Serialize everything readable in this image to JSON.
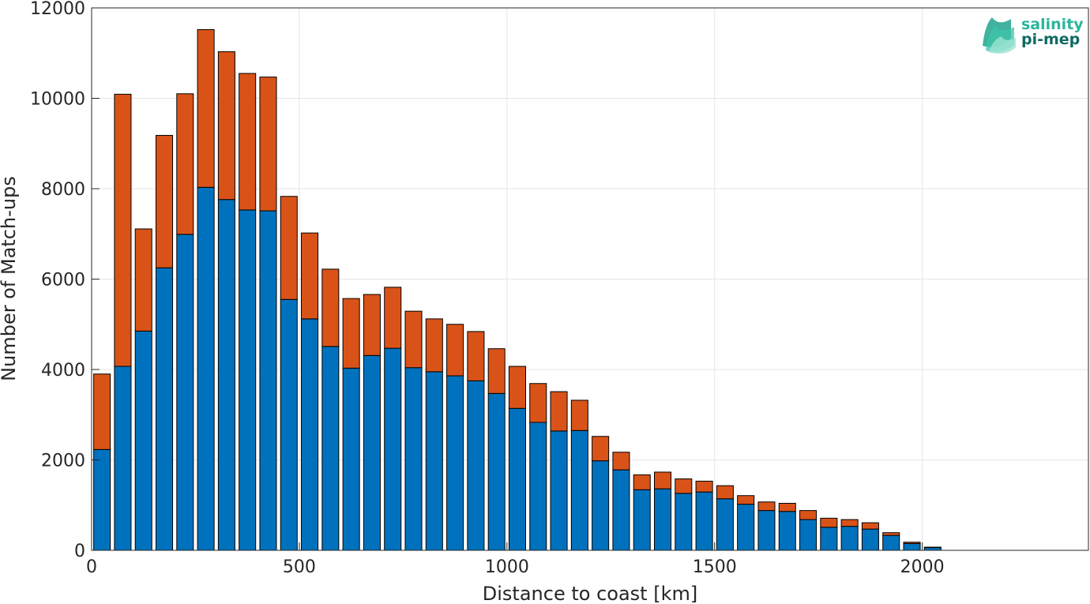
{
  "logo": {
    "line1": "salinity",
    "line2": "pi-mep",
    "color1": "#2bb59b",
    "color2": "#0f6b63"
  },
  "chart_data": {
    "type": "bar",
    "stacked": true,
    "xlabel": "Distance to coast [km]",
    "ylabel": "Number of Match-ups",
    "xlim": [
      0,
      2400
    ],
    "ylim": [
      0,
      12000
    ],
    "x_ticks": [
      0,
      500,
      1000,
      1500,
      2000
    ],
    "y_ticks": [
      0,
      2000,
      4000,
      6000,
      8000,
      10000,
      12000
    ],
    "bin_width": 50,
    "grid": true,
    "x": [
      25,
      75,
      125,
      175,
      225,
      275,
      325,
      375,
      425,
      475,
      525,
      575,
      625,
      675,
      725,
      775,
      825,
      875,
      925,
      975,
      1025,
      1075,
      1125,
      1175,
      1225,
      1275,
      1325,
      1375,
      1425,
      1475,
      1525,
      1575,
      1625,
      1675,
      1725,
      1775,
      1825,
      1875,
      1925,
      1975,
      2025
    ],
    "series": [
      {
        "color": "#0072bd",
        "values": [
          2230,
          4070,
          4850,
          6250,
          6990,
          8030,
          7760,
          7530,
          7510,
          5550,
          5120,
          4510,
          4030,
          4310,
          4470,
          4040,
          3950,
          3860,
          3750,
          3470,
          3140,
          2830,
          2640,
          2650,
          1980,
          1780,
          1340,
          1360,
          1260,
          1290,
          1140,
          1020,
          880,
          860,
          680,
          510,
          530,
          470,
          330,
          150,
          60
        ]
      },
      {
        "color": "#d95319",
        "values": [
          1670,
          6020,
          2260,
          2930,
          3110,
          3490,
          3270,
          3020,
          2960,
          2280,
          1900,
          1710,
          1540,
          1350,
          1350,
          1250,
          1170,
          1140,
          1090,
          990,
          930,
          860,
          870,
          670,
          540,
          390,
          330,
          370,
          320,
          240,
          290,
          190,
          190,
          180,
          200,
          200,
          150,
          140,
          60,
          30,
          10
        ]
      }
    ]
  }
}
